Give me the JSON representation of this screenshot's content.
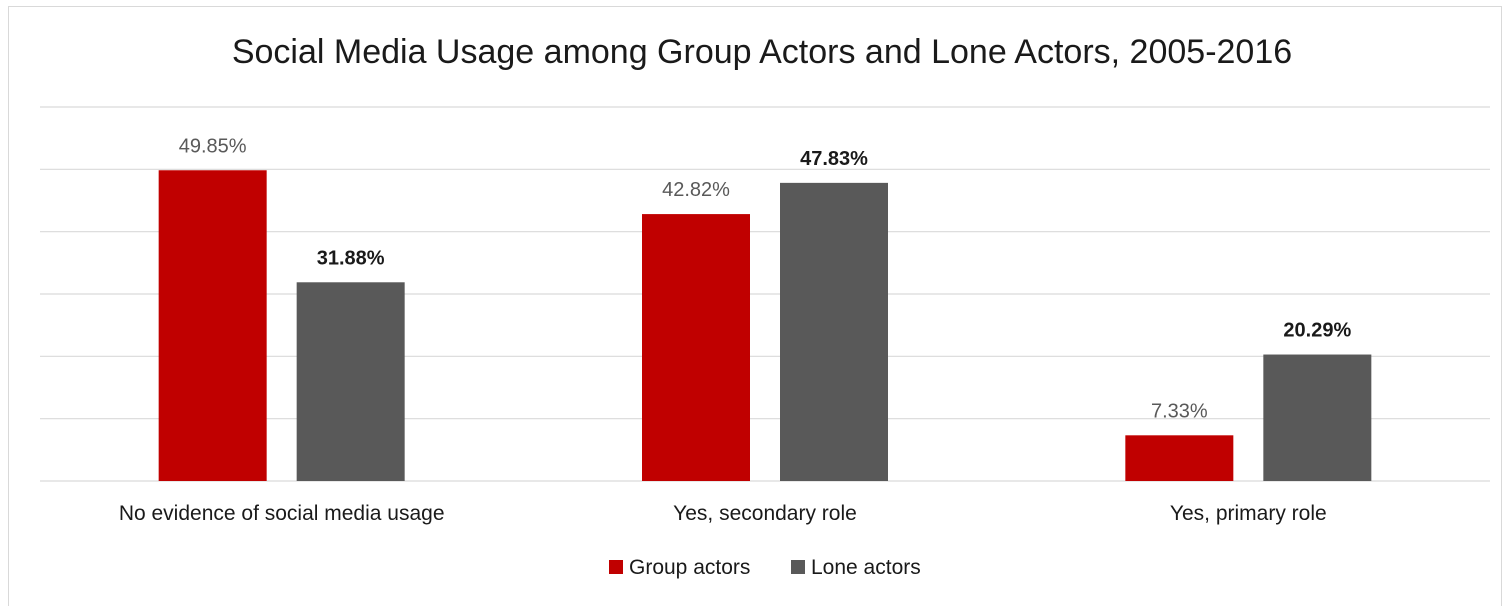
{
  "chart_data": {
    "type": "bar",
    "title": "Social Media Usage among Group Actors and Lone Actors, 2005-2016",
    "categories": [
      "No evidence of social media usage",
      "Yes, secondary role",
      "Yes, primary role"
    ],
    "series": [
      {
        "name": "Group actors",
        "color": "#c00000",
        "values": [
          49.85,
          42.82,
          7.33
        ],
        "labels": [
          "49.85%",
          "42.82%",
          "7.33%"
        ]
      },
      {
        "name": "Lone actors",
        "color": "#595959",
        "values": [
          31.88,
          47.83,
          20.29
        ],
        "labels": [
          "31.88%",
          "47.83%",
          "20.29%"
        ]
      }
    ],
    "xlabel": "",
    "ylabel": "",
    "ylim": [
      0,
      60
    ],
    "grid": true,
    "legend_position": "bottom"
  }
}
